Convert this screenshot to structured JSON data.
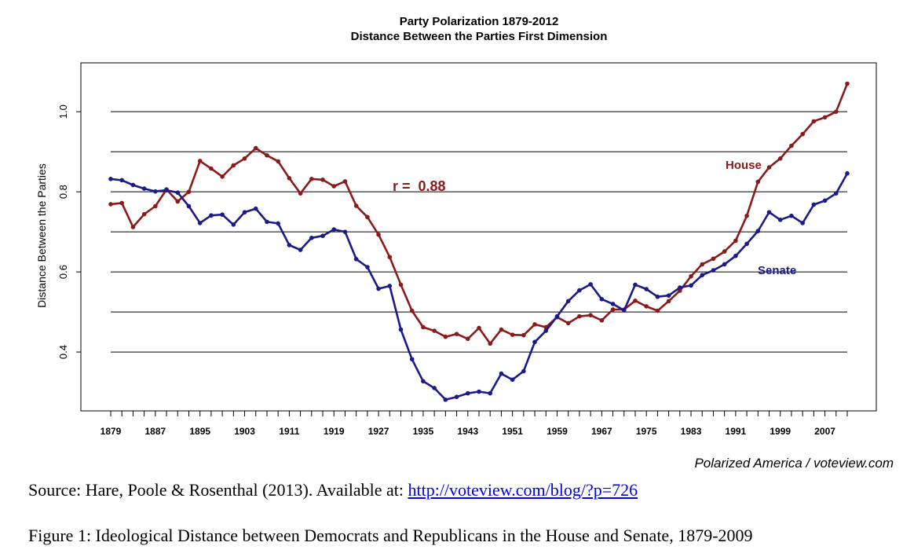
{
  "chart_data": {
    "type": "line",
    "title": "Party Polarization 1879-2012",
    "subtitle": "Distance Between the Parties First Dimension",
    "ylabel": "Distance Between the Parties",
    "xlabel": "",
    "x_tick_labels": [
      "1879",
      "1887",
      "1895",
      "1903",
      "1911",
      "1919",
      "1927",
      "1935",
      "1943",
      "1951",
      "1959",
      "1967",
      "1975",
      "1983",
      "1991",
      "1999",
      "2007"
    ],
    "y_tick_labels": [
      "0.4",
      "0.6",
      "0.8",
      "1.0"
    ],
    "y_ticks": [
      0.4,
      0.6,
      0.8,
      1.0
    ],
    "y_gridlines": [
      0.4,
      0.5,
      0.6,
      0.7,
      0.8,
      0.9,
      1.0
    ],
    "ylim": [
      0.255,
      1.12
    ],
    "grid": "horizontal",
    "annotation": "r =  0.88",
    "x": [
      1879,
      1881,
      1883,
      1885,
      1887,
      1889,
      1891,
      1893,
      1895,
      1897,
      1899,
      1901,
      1903,
      1905,
      1907,
      1909,
      1911,
      1913,
      1915,
      1917,
      1919,
      1921,
      1923,
      1925,
      1927,
      1929,
      1931,
      1933,
      1935,
      1937,
      1939,
      1941,
      1943,
      1945,
      1947,
      1949,
      1951,
      1953,
      1955,
      1957,
      1959,
      1961,
      1963,
      1965,
      1967,
      1969,
      1971,
      1973,
      1975,
      1977,
      1979,
      1981,
      1983,
      1985,
      1987,
      1989,
      1991,
      1993,
      1995,
      1997,
      1999,
      2001,
      2003,
      2005,
      2007,
      2009,
      2011
    ],
    "series": [
      {
        "name": "House",
        "color": "#8b1a1a",
        "values": [
          0.769,
          0.772,
          0.712,
          0.744,
          0.764,
          0.806,
          0.776,
          0.8,
          0.877,
          0.858,
          0.838,
          0.866,
          0.883,
          0.909,
          0.891,
          0.876,
          0.834,
          0.796,
          0.832,
          0.83,
          0.814,
          0.826,
          0.765,
          0.737,
          0.693,
          0.637,
          0.568,
          0.503,
          0.462,
          0.453,
          0.438,
          0.445,
          0.433,
          0.46,
          0.421,
          0.456,
          0.443,
          0.442,
          0.469,
          0.462,
          0.487,
          0.472,
          0.489,
          0.492,
          0.479,
          0.506,
          0.506,
          0.528,
          0.514,
          0.503,
          0.527,
          0.553,
          0.589,
          0.619,
          0.633,
          0.651,
          0.678,
          0.74,
          0.825,
          0.861,
          0.883,
          0.915,
          0.944,
          0.976,
          0.986,
          1.0,
          1.07
        ]
      },
      {
        "name": "Senate",
        "color": "#1a1a8b",
        "values": [
          0.832,
          0.829,
          0.817,
          0.808,
          0.801,
          0.804,
          0.798,
          0.764,
          0.722,
          0.741,
          0.743,
          0.718,
          0.749,
          0.758,
          0.725,
          0.721,
          0.667,
          0.655,
          0.685,
          0.69,
          0.706,
          0.7,
          0.632,
          0.612,
          0.558,
          0.565,
          0.456,
          0.382,
          0.327,
          0.31,
          0.281,
          0.288,
          0.297,
          0.301,
          0.297,
          0.346,
          0.331,
          0.352,
          0.425,
          0.453,
          0.489,
          0.527,
          0.554,
          0.569,
          0.532,
          0.52,
          0.504,
          0.568,
          0.557,
          0.538,
          0.541,
          0.561,
          0.566,
          0.592,
          0.604,
          0.619,
          0.64,
          0.67,
          0.702,
          0.749,
          0.73,
          0.74,
          0.722,
          0.768,
          0.778,
          0.796,
          0.846
        ]
      }
    ]
  },
  "credit": "Polarized America / voteview.com",
  "source": {
    "prefix": "Source:  Hare, Poole & Rosenthal (2013).  Available at:  ",
    "link_text": "http://voteview.com/blog/?p=726"
  },
  "figure_caption": "Figure 1: Ideological Distance between Democrats and Republicans in the House and Senate, 1879-2009"
}
